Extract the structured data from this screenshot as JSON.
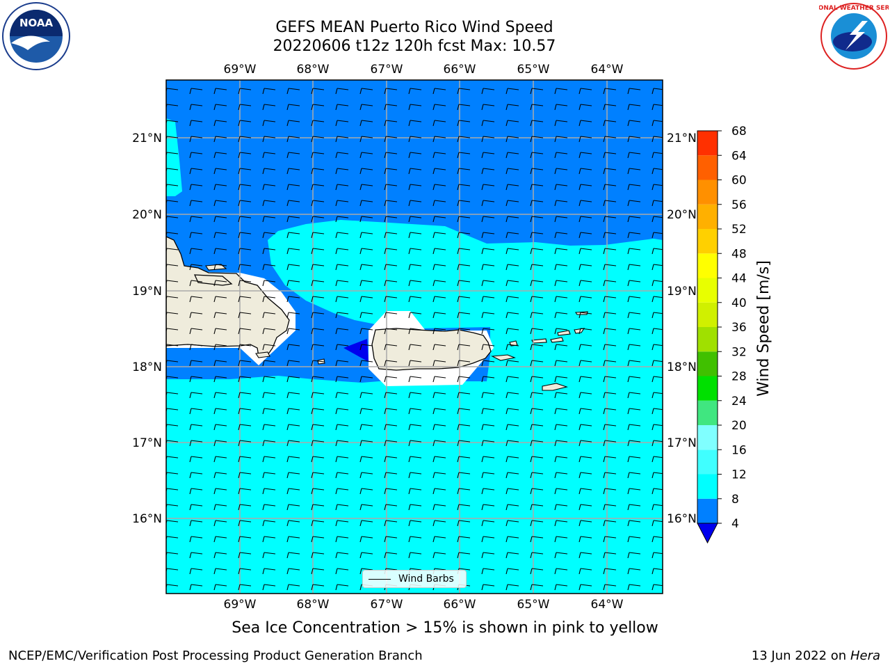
{
  "title_line1": "GEFS MEAN Puerto Rico Wind Speed",
  "title_line2": "20220606 t12z 120h fcst   Max: 10.57",
  "lon_labels": [
    "69°W",
    "68°W",
    "67°W",
    "66°W",
    "65°W",
    "64°W"
  ],
  "lat_labels": [
    "21°N",
    "20°N",
    "19°N",
    "18°N",
    "17°N",
    "16°N"
  ],
  "colorbar": {
    "label": "Wind Speed [m/s]",
    "ticks": [
      "4",
      "8",
      "12",
      "16",
      "20",
      "24",
      "28",
      "32",
      "36",
      "40",
      "44",
      "48",
      "52",
      "56",
      "60",
      "64",
      "68"
    ],
    "colors": [
      "#0080ff",
      "#00ffff",
      "#40ffff",
      "#80ffff",
      "#40e680",
      "#00e000",
      "#40c000",
      "#a0e000",
      "#d0f000",
      "#e8ff00",
      "#ffff00",
      "#ffd000",
      "#ffb000",
      "#ff9000",
      "#ff6000",
      "#ff3000",
      "#ff0000"
    ],
    "under_color": "#0000ee"
  },
  "legend": {
    "label": "Wind Barbs"
  },
  "note": "Sea Ice Concentration > 15% is shown in pink to yellow",
  "footer": {
    "left": "NCEP/EMC/Verification Post Processing Product Generation Branch",
    "date": "13 Jun 2022 on",
    "machine": "Hera"
  },
  "logos": {
    "left": "NOAA",
    "right": "NATIONAL WEATHER SERVICE"
  },
  "map_colors": {
    "light_wind": "#0080ff",
    "moderate_wind": "#00ffff",
    "land": "#efecdc",
    "calm": "#0000ee"
  }
}
